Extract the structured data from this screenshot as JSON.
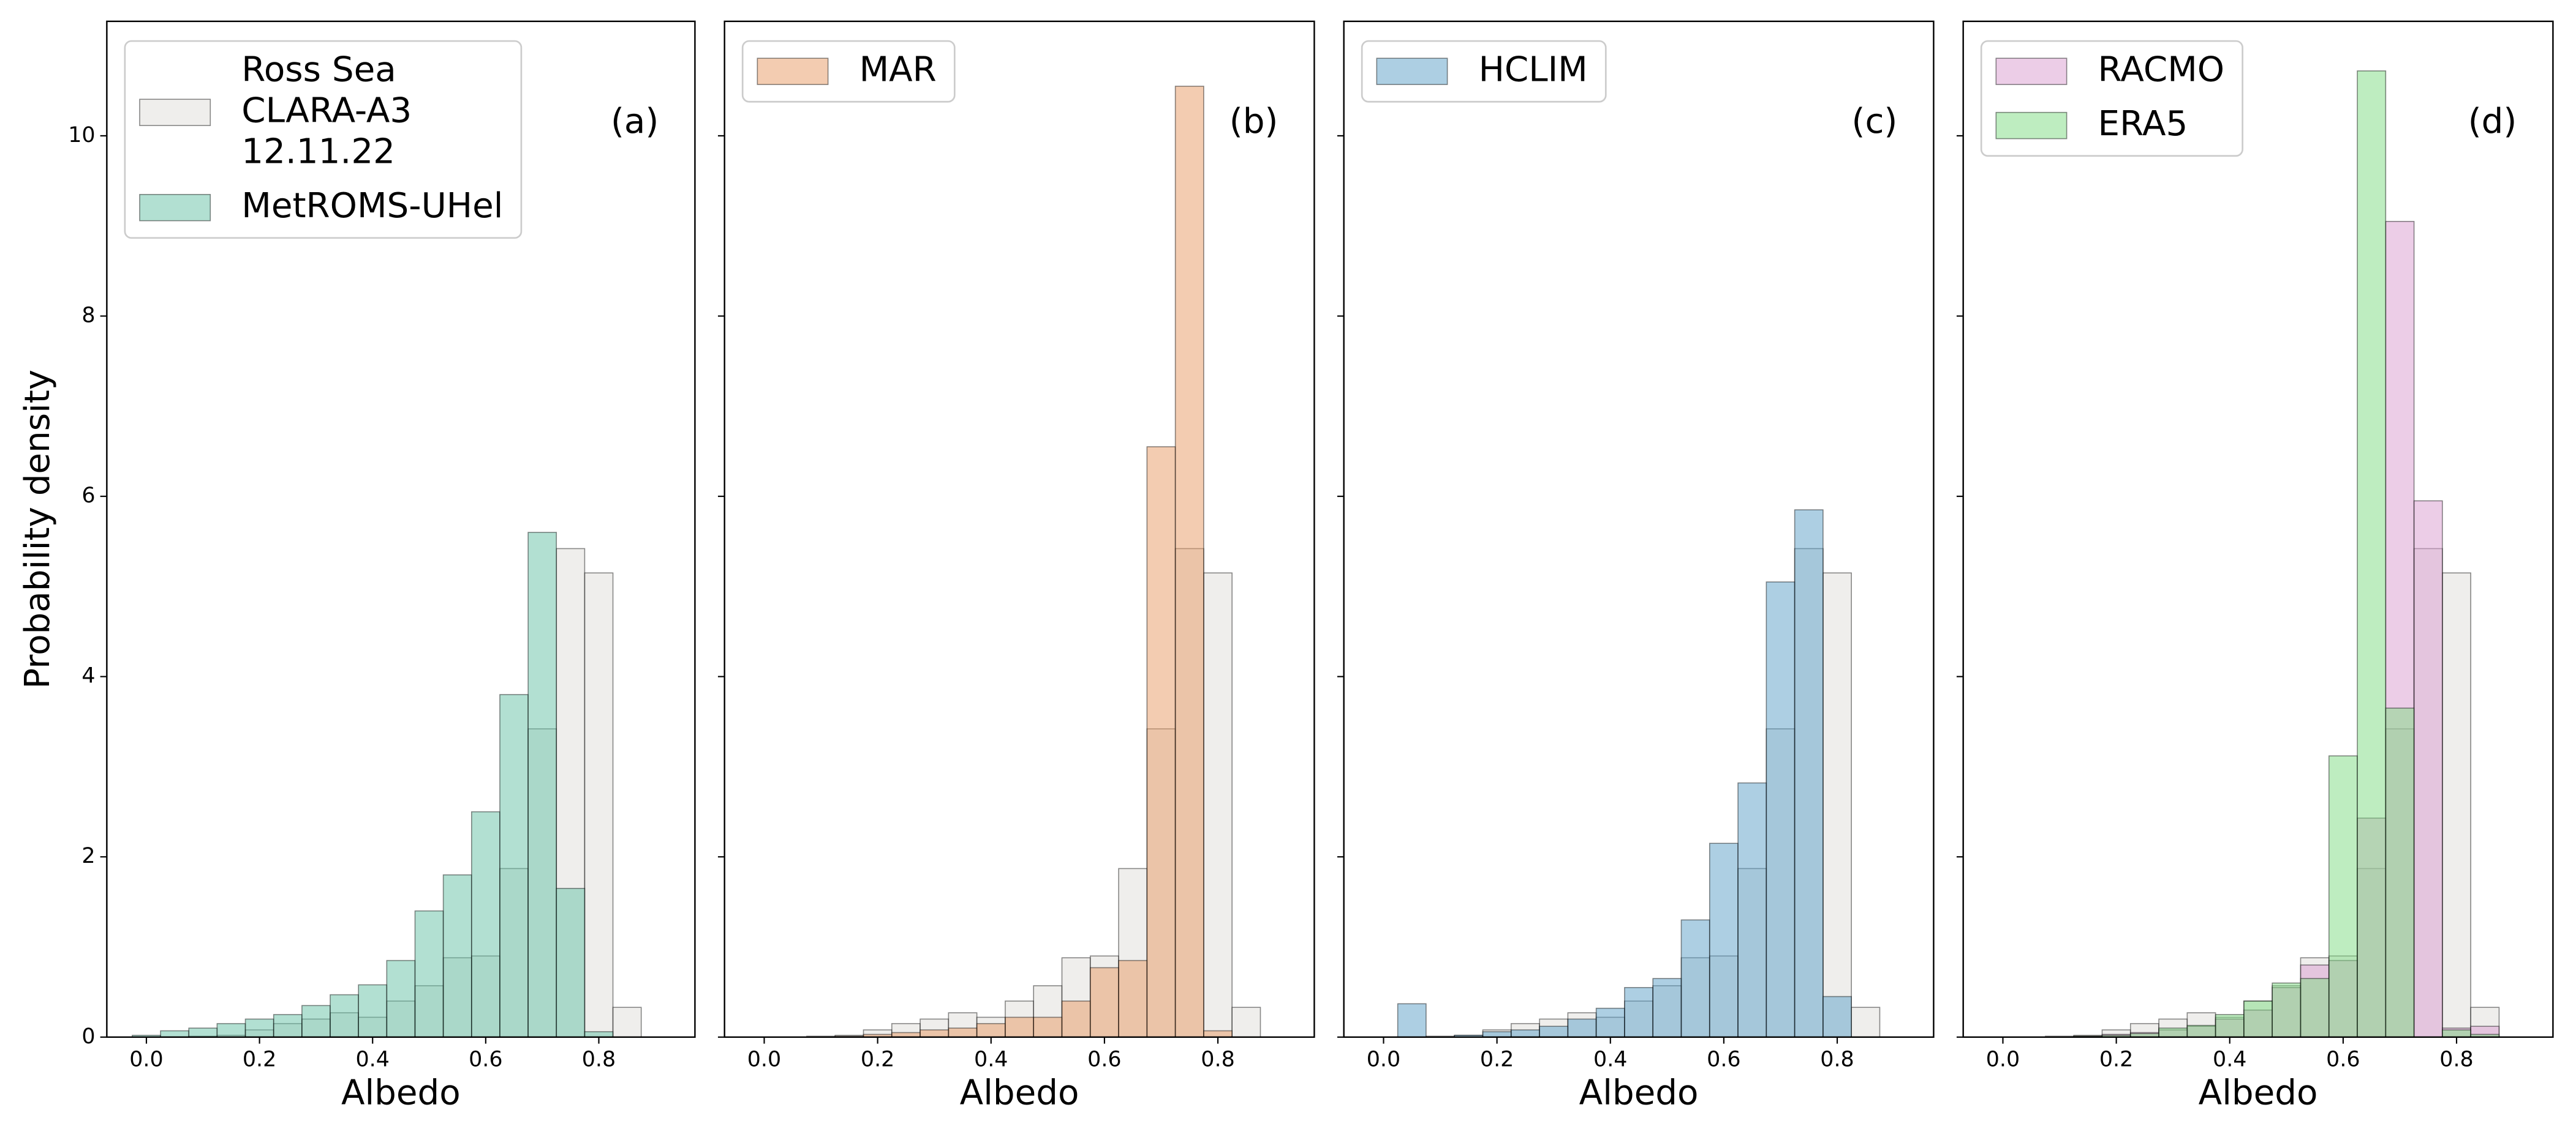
{
  "chart_data": [
    {
      "type": "histogram",
      "annotation": "(a)",
      "xlabel": "Albedo",
      "ylabel": "Probability density",
      "legend": "upper left",
      "alpha": 0.5,
      "bins": [
        -0.025,
        0.025,
        0.075,
        0.125,
        0.175,
        0.225,
        0.275,
        0.325,
        0.375,
        0.425,
        0.475,
        0.525,
        0.575,
        0.625,
        0.675,
        0.725,
        0.775,
        0.825,
        0.875
      ],
      "xlim": [
        -0.07,
        0.97
      ],
      "xticks": [
        {
          "value": 0,
          "label": "0.0"
        },
        0.2,
        0.4,
        0.6,
        0.8
      ],
      "ylim": [
        0,
        11.27
      ],
      "yticks": [
        0,
        2,
        4,
        6,
        8,
        10
      ],
      "series": [
        {
          "name": "Ross Sea\nCLARA-A3\n12.11.22",
          "color": "#e0ddd9",
          "values": [
            0,
            0,
            0.01,
            0.02,
            0.08,
            0.15,
            0.2,
            0.27,
            0.22,
            0.4,
            0.57,
            0.88,
            0.9,
            1.87,
            3.42,
            5.42,
            5.15,
            0.33
          ]
        },
        {
          "name": "MetROMS-UHel",
          "color": "#66c2a5",
          "values": [
            0.02,
            0.07,
            0.1,
            0.15,
            0.2,
            0.25,
            0.35,
            0.47,
            0.58,
            0.85,
            1.4,
            1.8,
            2.5,
            3.8,
            5.6,
            1.65,
            0.06,
            0
          ]
        }
      ]
    },
    {
      "type": "histogram",
      "annotation": "(b)",
      "xlabel": "Albedo",
      "legend": "upper left",
      "alpha": 0.5,
      "bins": [
        -0.025,
        0.025,
        0.075,
        0.125,
        0.175,
        0.225,
        0.275,
        0.325,
        0.375,
        0.425,
        0.475,
        0.525,
        0.575,
        0.625,
        0.675,
        0.725,
        0.775,
        0.825,
        0.875
      ],
      "xlim": [
        -0.07,
        0.97
      ],
      "xticks": [
        {
          "value": 0,
          "label": "0.0"
        },
        0.2,
        0.4,
        0.6,
        0.8
      ],
      "ylim": [
        0,
        11.27
      ],
      "series": [
        {
          "color": "#e0ddd9",
          "values": [
            0,
            0,
            0.01,
            0.02,
            0.08,
            0.15,
            0.2,
            0.27,
            0.22,
            0.4,
            0.57,
            0.88,
            0.9,
            1.87,
            3.42,
            5.42,
            5.15,
            0.33
          ]
        },
        {
          "name": "MAR",
          "color": "#e89a63",
          "values": [
            0,
            0,
            0,
            0.01,
            0.03,
            0.05,
            0.08,
            0.1,
            0.15,
            0.22,
            0.22,
            0.4,
            0.77,
            0.85,
            6.55,
            10.55,
            0.07,
            0
          ]
        }
      ]
    },
    {
      "type": "histogram",
      "annotation": "(c)",
      "xlabel": "Albedo",
      "legend": "upper left",
      "alpha": 0.5,
      "bins": [
        -0.025,
        0.025,
        0.075,
        0.125,
        0.175,
        0.225,
        0.275,
        0.325,
        0.375,
        0.425,
        0.475,
        0.525,
        0.575,
        0.625,
        0.675,
        0.725,
        0.775,
        0.825,
        0.875
      ],
      "xlim": [
        -0.07,
        0.97
      ],
      "xticks": [
        {
          "value": 0,
          "label": "0.0"
        },
        0.2,
        0.4,
        0.6,
        0.8
      ],
      "ylim": [
        0,
        11.27
      ],
      "series": [
        {
          "color": "#e0ddd9",
          "values": [
            0,
            0,
            0.01,
            0.02,
            0.08,
            0.15,
            0.2,
            0.27,
            0.22,
            0.4,
            0.57,
            0.88,
            0.9,
            1.87,
            3.42,
            5.42,
            5.15,
            0.33
          ]
        },
        {
          "name": "HCLIM",
          "color": "#5b9fc8",
          "values": [
            0,
            0.37,
            0,
            0.02,
            0.06,
            0.08,
            0.12,
            0.2,
            0.32,
            0.55,
            0.65,
            1.3,
            2.15,
            2.82,
            5.05,
            5.85,
            0.45,
            0
          ]
        }
      ]
    },
    {
      "type": "histogram",
      "annotation": "(d)",
      "xlabel": "Albedo",
      "legend": "upper left",
      "alpha": 0.5,
      "bins": [
        -0.025,
        0.025,
        0.075,
        0.125,
        0.175,
        0.225,
        0.275,
        0.325,
        0.375,
        0.425,
        0.475,
        0.525,
        0.575,
        0.625,
        0.675,
        0.725,
        0.775,
        0.825,
        0.875
      ],
      "xlim": [
        -0.07,
        0.97
      ],
      "xticks": [
        {
          "value": 0,
          "label": "0.0"
        },
        0.2,
        0.4,
        0.6,
        0.8
      ],
      "ylim": [
        0,
        11.27
      ],
      "series": [
        {
          "color": "#e0ddd9",
          "values": [
            0,
            0,
            0.01,
            0.02,
            0.08,
            0.15,
            0.2,
            0.27,
            0.22,
            0.4,
            0.57,
            0.88,
            0.9,
            1.87,
            3.42,
            5.42,
            5.15,
            0.33
          ]
        },
        {
          "name": "RACMO",
          "color": "#d99bd0",
          "values": [
            0,
            0,
            0,
            0.01,
            0.03,
            0.05,
            0.08,
            0.12,
            0.2,
            0.3,
            0.55,
            0.8,
            0.85,
            2.43,
            9.05,
            5.95,
            0.1,
            0.12
          ]
        },
        {
          "name": "ERA5",
          "color": "#7ddb82",
          "values": [
            0,
            0,
            0,
            0.01,
            0.02,
            0.04,
            0.1,
            0.13,
            0.25,
            0.4,
            0.6,
            0.65,
            3.12,
            10.72,
            3.65,
            0,
            0.08,
            0.03
          ]
        }
      ]
    }
  ]
}
